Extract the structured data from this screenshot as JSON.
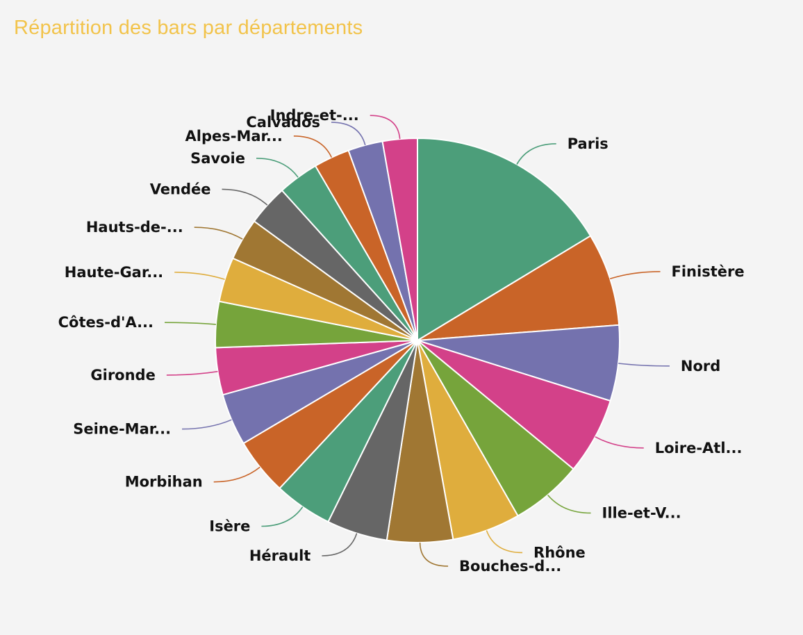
{
  "title": "Répartition des bars par départements",
  "colors": {
    "title": "#f2c34a",
    "slice_border": "#ffffff"
  },
  "chart_data": {
    "type": "pie",
    "title": "Répartition des bars par départements",
    "legend": "none",
    "start_angle_deg": 0,
    "direction": "clockwise",
    "slices": [
      {
        "label": "Paris",
        "value": 16.5,
        "color": "#4c9e7a"
      },
      {
        "label": "Finistère",
        "value": 7.5,
        "color": "#c96428"
      },
      {
        "label": "Nord",
        "value": 6.1,
        "color": "#7472ae"
      },
      {
        "label": "Loire-Atl...",
        "value": 6.2,
        "color": "#d34189"
      },
      {
        "label": "Ille-et-V...",
        "value": 5.8,
        "color": "#76a43b"
      },
      {
        "label": "Rhône",
        "value": 5.5,
        "color": "#dfad3d"
      },
      {
        "label": "Bouches-d...",
        "value": 5.3,
        "color": "#a07733"
      },
      {
        "label": "Hérault",
        "value": 4.9,
        "color": "#666666"
      },
      {
        "label": "Isère",
        "value": 4.7,
        "color": "#4c9e7a"
      },
      {
        "label": "Morbihan",
        "value": 4.6,
        "color": "#c96428"
      },
      {
        "label": "Seine-Mar...",
        "value": 4.2,
        "color": "#7472ae"
      },
      {
        "label": "Gironde",
        "value": 3.8,
        "color": "#d34189"
      },
      {
        "label": "Côtes-d'A...",
        "value": 3.7,
        "color": "#76a43b"
      },
      {
        "label": "Haute-Gar...",
        "value": 3.6,
        "color": "#dfad3d"
      },
      {
        "label": "Hauts-de-...",
        "value": 3.4,
        "color": "#a07733"
      },
      {
        "label": "Vendée",
        "value": 3.3,
        "color": "#666666"
      },
      {
        "label": "Savoie",
        "value": 3.3,
        "color": "#4c9e7a"
      },
      {
        "label": "Alpes-Mar...",
        "value": 2.9,
        "color": "#c96428"
      },
      {
        "label": "Calvados",
        "value": 2.8,
        "color": "#7472ae"
      },
      {
        "label": "Indre-et-...",
        "value": 2.8,
        "color": "#d34189"
      }
    ]
  }
}
